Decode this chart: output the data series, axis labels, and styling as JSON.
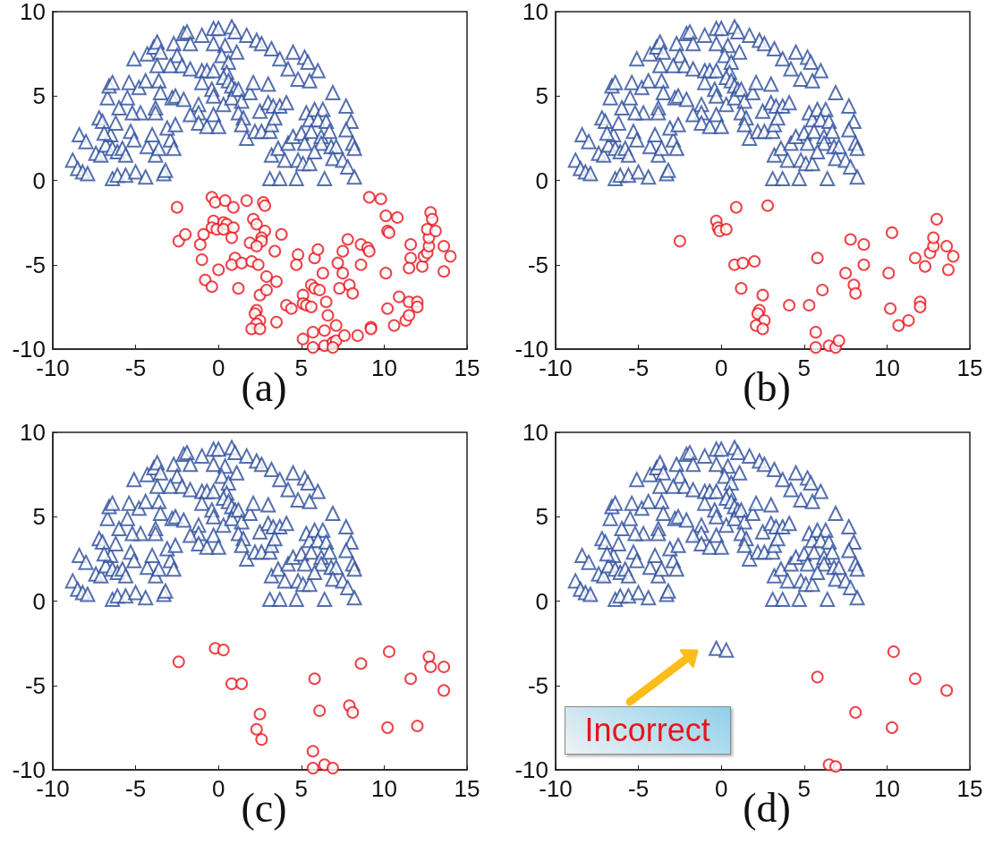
{
  "chart_data": [
    {
      "type": "scatter",
      "title": "(a)",
      "xlim": [
        -10,
        15
      ],
      "ylim": [
        -10,
        10
      ],
      "xticks": [
        -10,
        -5,
        0,
        5,
        10,
        15
      ],
      "yticks": [
        -10,
        -5,
        0,
        5,
        10
      ],
      "series": [
        {
          "color": "#2b4c9b",
          "marker": "triangle",
          "x": [
            -8.8,
            -8.5,
            -8.2,
            -7.9,
            -8.4,
            -8.0,
            -7.4,
            -7.1,
            -6.8,
            -6.5,
            -7.2,
            -7.0,
            -6.9,
            -6.7,
            -6.6,
            -6.4,
            -6.0,
            -6.2,
            -6.4,
            -6.1,
            -5.8,
            -5.6,
            -6.4,
            -6.1,
            -5.6,
            -5.0,
            -4.4,
            -5.5,
            -5.4,
            -5.1,
            -4.8,
            -4.7,
            -5.2,
            -5.3,
            -5.1,
            -4.3,
            -4.4,
            -4.3,
            -3.9,
            -3.7,
            -3.5,
            -3.7,
            -3.6,
            -3.5,
            -3.8,
            -3.8,
            -4.0,
            -3.8,
            -3.6,
            -3.3,
            -3.2,
            -2.9,
            -2.7,
            -3.1,
            -2.6,
            -2.8,
            -2.6,
            -2.1,
            -2.7,
            -2.5,
            -2.9,
            -2.2,
            -1.7,
            -2.1,
            -1.9,
            -1.7,
            -1.0,
            -1.2,
            -1.2,
            -1.7,
            -1.2,
            -0.7,
            -1.0,
            -0.7,
            -0.3,
            -1.0,
            -0.4,
            -0.3,
            -0.3,
            0.0,
            -0.3,
            0.0,
            -0.3,
            0.4,
            0.2,
            0.6,
            0.8,
            1.0,
            1.1,
            0.5,
            0.3,
            0.6,
            0.8,
            1.0,
            0.3,
            0.8,
            1.2,
            1.4,
            1.9,
            2.1,
            3.0,
            1.2,
            1.5,
            1.4,
            1.7,
            2.2,
            2.6,
            3.1,
            3.2,
            2.5,
            3.0,
            3.3,
            3.7,
            4.1,
            3.4,
            1.7,
            2.3,
            2.6,
            3.2,
            3.7,
            4.5,
            5.2,
            5.4,
            4.2,
            4.8,
            5.5,
            6.0,
            6.9,
            7.7,
            8.0,
            7.7,
            3.2,
            3.6,
            4.0,
            4.2,
            4.5,
            4.8,
            5.1,
            5.5,
            5.3,
            5.5,
            5.8,
            6.3,
            6.0,
            6.5,
            5.0,
            5.2,
            5.6,
            6.2,
            6.7,
            6.2,
            6.8,
            7.1,
            5.8,
            6.9,
            7.5,
            7.8,
            8.1,
            8.2,
            3.1,
            3.7,
            4.7,
            6.4,
            8.2
          ],
          "values": [
            1.2,
            0.7,
            0.5,
            0.4,
            2.7,
            2.3,
            1.6,
            1.5,
            2.1,
            2.7,
            3.7,
            3.5,
            2.8,
            4.9,
            5.6,
            5.8,
            4.3,
            3.4,
            1.9,
            1.7,
            1.9,
            1.5,
            0.1,
            0.3,
            0.3,
            0.5,
            0.2,
            4.9,
            5.8,
            7.2,
            5.5,
            4.0,
            4.0,
            2.9,
            2.4,
            2.0,
            5.9,
            7.5,
            7.9,
            8.2,
            7.6,
            6.8,
            5.9,
            5.2,
            4.3,
            4.0,
            2.7,
            1.5,
            1.9,
            0.4,
            0.6,
            2.4,
            1.9,
            3.1,
            3.3,
            4.9,
            5.0,
            4.8,
            8.1,
            7.4,
            6.8,
            6.8,
            6.6,
            8.7,
            8.8,
            8.1,
            8.6,
            4.5,
            4.0,
            3.9,
            3.4,
            3.2,
            6.5,
            6.5,
            6.5,
            5.8,
            5.4,
            5.0,
            3.9,
            3.2,
            9.0,
            9.0,
            8.1,
            8.0,
            7.4,
            7.0,
            9.1,
            8.8,
            7.6,
            6.4,
            6.1,
            5.9,
            5.6,
            5.4,
            4.5,
            4.9,
            5.4,
            4.7,
            5.2,
            5.8,
            5.7,
            4.0,
            3.7,
            3.3,
            2.5,
            2.9,
            2.9,
            2.9,
            3.3,
            4.1,
            4.6,
            4.4,
            4.4,
            4.6,
            3.7,
            8.6,
            8.3,
            8.1,
            7.8,
            7.2,
            7.6,
            7.3,
            7.0,
            6.6,
            6.0,
            5.9,
            6.5,
            5.2,
            4.4,
            3.5,
            3.0,
            1.5,
            1.9,
            1.2,
            2.2,
            2.6,
            1.2,
            1.0,
            1.0,
            4.0,
            3.6,
            4.2,
            4.2,
            3.6,
            3.5,
            2.8,
            2.2,
            2.9,
            2.6,
            2.9,
            2.2,
            2.0,
            2.0,
            1.7,
            1.3,
            1.2,
            0.8,
            2.2,
            1.9,
            0.1,
            0.1,
            0.1,
            0.1,
            0.2
          ]
        },
        {
          "color": "#e8141c",
          "marker": "circle",
          "x": [
            -2.5,
            -2.4,
            -2.0,
            -1.1,
            -1.0,
            -0.8,
            -0.4,
            0.0,
            -0.4,
            -0.2,
            0.4,
            0.9,
            1.7,
            2.7,
            2.8,
            -0.3,
            -0.4,
            -0.1,
            0.3,
            0.5,
            0.3,
            0.9,
            0.8,
            -0.9,
            2.1,
            2.3,
            2.8,
            3.8,
            2.6,
            2.6,
            1.9,
            2.3,
            3.4,
            1.0,
            0.8,
            1.4,
            2.0,
            2.4,
            2.9,
            3.5,
            1.2,
            2.5,
            2.9,
            2.3,
            2.2,
            2.5,
            2.3,
            2.0,
            2.5,
            3.5,
            4.1,
            4.4,
            4.8,
            4.7,
            5.1,
            5.1,
            5.3,
            5.6,
            5.6,
            5.8,
            6.1,
            5.8,
            6.0,
            6.3,
            6.5,
            6.6,
            7.1,
            6.4,
            5.7,
            5.1,
            5.7,
            6.4,
            6.9,
            7.1,
            6.9,
            7.6,
            8.4,
            7.2,
            7.5,
            7.8,
            7.5,
            7.3,
            7.9,
            8.1,
            8.6,
            9.0,
            9.1,
            8.6,
            9.1,
            9.8,
            10.1,
            10.8,
            10.2,
            10.3,
            10.1,
            10.2,
            10.9,
            9.2,
            9.2,
            10.6,
            11.3,
            11.5,
            11.5,
            12.0,
            12.0,
            11.6,
            11.6,
            11.5,
            12.3,
            12.4,
            12.6,
            12.7,
            12.7,
            12.6,
            13.1,
            12.8,
            12.9,
            13.6,
            14.0,
            13.6
          ],
          "values": [
            -1.6,
            -3.6,
            -3.2,
            -3.8,
            -4.7,
            -5.9,
            -6.3,
            -5.3,
            -1.0,
            -1.3,
            -1.2,
            -1.6,
            -1.2,
            -1.3,
            -1.5,
            -2.4,
            -2.8,
            -2.9,
            -2.5,
            -2.6,
            -2.9,
            -2.8,
            -3.4,
            -3.2,
            -2.3,
            -2.6,
            -3.0,
            -3.2,
            -3.4,
            -3.6,
            -3.7,
            -3.9,
            -4.2,
            -4.6,
            -5.0,
            -4.9,
            -4.8,
            -5.0,
            -5.7,
            -6.0,
            -6.4,
            -6.8,
            -6.5,
            -7.7,
            -7.9,
            -8.3,
            -8.5,
            -8.8,
            -8.8,
            -8.4,
            -7.4,
            -7.6,
            -4.4,
            -5.0,
            -6.8,
            -7.3,
            -7.4,
            -7.5,
            -6.2,
            -6.4,
            -6.5,
            -4.6,
            -4.1,
            -5.5,
            -7.2,
            -8.0,
            -8.6,
            -8.9,
            -9.0,
            -9.4,
            -9.9,
            -9.8,
            -9.6,
            -9.5,
            -9.9,
            -9.2,
            -9.2,
            -4.9,
            -4.2,
            -3.5,
            -5.5,
            -6.4,
            -6.2,
            -6.7,
            -3.8,
            -4.0,
            -4.2,
            -5.0,
            -1.0,
            -1.1,
            -2.1,
            -2.2,
            -3.0,
            -3.1,
            -5.5,
            -7.6,
            -6.9,
            -8.7,
            -8.8,
            -8.6,
            -8.3,
            -8.0,
            -7.2,
            -7.2,
            -7.5,
            -3.8,
            -4.6,
            -5.2,
            -5.1,
            -4.5,
            -4.3,
            -3.9,
            -3.4,
            -2.9,
            -3.0,
            -1.9,
            -2.3,
            -3.9,
            -4.5,
            -5.4
          ]
        }
      ]
    },
    {
      "type": "scatter",
      "title": "(b)",
      "xlim": [
        -10,
        15
      ],
      "ylim": [
        -10,
        10
      ],
      "xticks": [
        -10,
        -5,
        0,
        5,
        10,
        15
      ],
      "yticks": [
        -10,
        -5,
        0,
        5,
        10
      ],
      "series": [
        {
          "color": "#2b4c9b",
          "marker": "triangle",
          "x": [
            -8.8,
            -8.5,
            -8.2,
            -7.9,
            -8.4,
            -8.0,
            -7.4,
            -7.1,
            -6.8,
            -6.5,
            -7.2,
            -7.0,
            -6.9,
            -6.7,
            -6.6,
            -6.4,
            -6.0,
            -6.2,
            -6.4,
            -6.1,
            -5.8,
            -5.6,
            -6.4,
            -6.1,
            -5.6,
            -5.0,
            -4.4,
            -5.5,
            -5.4,
            -5.1,
            -4.8,
            -4.7,
            -5.2,
            -5.3,
            -5.1,
            -4.3,
            -4.4,
            -4.3,
            -3.9,
            -3.7,
            -3.5,
            -3.7,
            -3.6,
            -3.5,
            -3.8,
            -3.8,
            -4.0,
            -3.8,
            -3.6,
            -3.3,
            -3.2,
            -2.9,
            -2.7,
            -3.1,
            -2.6,
            -2.8,
            -2.6,
            -2.1,
            -2.7,
            -2.5,
            -2.9,
            -2.2,
            -1.7,
            -2.1,
            -1.9,
            -1.7,
            -1.0,
            -1.2,
            -1.2,
            -1.7,
            -1.2,
            -0.7,
            -1.0,
            -0.7,
            -0.3,
            -1.0,
            -0.4,
            -0.3,
            -0.3,
            0.0,
            -0.3,
            0.0,
            -0.3,
            0.4,
            0.2,
            0.6,
            0.8,
            1.0,
            1.1,
            0.5,
            0.3,
            0.6,
            0.8,
            1.0,
            0.3,
            0.8,
            1.2,
            1.4,
            1.9,
            2.1,
            3.0,
            1.2,
            1.5,
            1.4,
            1.7,
            2.2,
            2.6,
            3.1,
            3.2,
            2.5,
            3.0,
            3.3,
            3.7,
            4.1,
            3.4,
            1.7,
            2.3,
            2.6,
            3.2,
            3.7,
            4.5,
            5.2,
            5.4,
            4.2,
            4.8,
            5.5,
            6.0,
            6.9,
            7.7,
            8.0,
            7.7,
            3.2,
            3.6,
            4.0,
            4.2,
            4.5,
            4.8,
            5.1,
            5.5,
            5.3,
            5.5,
            5.8,
            6.3,
            6.0,
            6.5,
            5.0,
            5.2,
            5.6,
            6.2,
            6.7,
            6.2,
            6.8,
            7.1,
            5.8,
            6.9,
            7.5,
            7.8,
            8.1,
            8.2,
            3.1,
            3.7,
            4.7,
            6.4,
            8.2
          ],
          "values": [
            1.2,
            0.7,
            0.5,
            0.4,
            2.7,
            2.3,
            1.6,
            1.5,
            2.1,
            2.7,
            3.7,
            3.5,
            2.8,
            4.9,
            5.6,
            5.8,
            4.3,
            3.4,
            1.9,
            1.7,
            1.9,
            1.5,
            0.1,
            0.3,
            0.3,
            0.5,
            0.2,
            4.9,
            5.8,
            7.2,
            5.5,
            4.0,
            4.0,
            2.9,
            2.4,
            2.0,
            5.9,
            7.5,
            7.9,
            8.2,
            7.6,
            6.8,
            5.9,
            5.2,
            4.3,
            4.0,
            2.7,
            1.5,
            1.9,
            0.4,
            0.6,
            2.4,
            1.9,
            3.1,
            3.3,
            4.9,
            5.0,
            4.8,
            8.1,
            7.4,
            6.8,
            6.8,
            6.6,
            8.7,
            8.8,
            8.1,
            8.6,
            4.5,
            4.0,
            3.9,
            3.4,
            3.2,
            6.5,
            6.5,
            6.5,
            5.8,
            5.4,
            5.0,
            3.9,
            3.2,
            9.0,
            9.0,
            8.1,
            8.0,
            7.4,
            7.0,
            9.1,
            8.8,
            7.6,
            6.4,
            6.1,
            5.9,
            5.6,
            5.4,
            4.5,
            4.9,
            5.4,
            4.7,
            5.2,
            5.8,
            5.7,
            4.0,
            3.7,
            3.3,
            2.5,
            2.9,
            2.9,
            2.9,
            3.3,
            4.1,
            4.6,
            4.4,
            4.4,
            4.6,
            3.7,
            8.6,
            8.3,
            8.1,
            7.8,
            7.2,
            7.6,
            7.3,
            7.0,
            6.6,
            6.0,
            5.9,
            6.5,
            5.2,
            4.4,
            3.5,
            3.0,
            1.5,
            1.9,
            1.2,
            2.2,
            2.6,
            1.2,
            1.0,
            1.0,
            4.0,
            3.6,
            4.2,
            4.2,
            3.6,
            3.5,
            2.8,
            2.2,
            2.9,
            2.6,
            2.9,
            2.2,
            2.0,
            2.0,
            1.7,
            1.3,
            1.2,
            0.8,
            2.2,
            1.9,
            0.1,
            0.1,
            0.1,
            0.1,
            0.2
          ]
        },
        {
          "color": "#e8141c",
          "marker": "circle",
          "x": [
            -2.5,
            -0.3,
            -0.2,
            -0.1,
            0.3,
            0.9,
            2.8,
            0.8,
            1.3,
            2.0,
            1.2,
            2.5,
            2.3,
            2.2,
            2.6,
            2.1,
            2.5,
            4.1,
            5.3,
            5.8,
            6.1,
            5.7,
            5.7,
            6.5,
            6.9,
            7.1,
            7.5,
            7.8,
            8.6,
            8.6,
            8.0,
            8.1,
            10.3,
            10.1,
            10.2,
            10.7,
            11.3,
            12.0,
            12.0,
            11.7,
            12.3,
            12.6,
            12.8,
            12.8,
            13.0,
            13.6,
            14.0,
            13.7
          ],
          "values": [
            -3.6,
            -2.4,
            -2.8,
            -3.0,
            -2.9,
            -1.6,
            -1.5,
            -5.0,
            -4.9,
            -4.8,
            -6.4,
            -6.8,
            -7.7,
            -7.9,
            -8.3,
            -8.6,
            -8.8,
            -7.4,
            -7.4,
            -4.6,
            -6.5,
            -9.0,
            -9.9,
            -9.8,
            -9.9,
            -9.5,
            -5.5,
            -3.5,
            -3.8,
            -5.0,
            -6.2,
            -6.7,
            -3.1,
            -5.5,
            -7.6,
            -8.6,
            -8.3,
            -7.2,
            -7.5,
            -4.6,
            -5.1,
            -4.3,
            -3.9,
            -3.4,
            -2.3,
            -3.9,
            -4.5,
            -5.3
          ]
        }
      ]
    },
    {
      "type": "scatter",
      "title": "(c)",
      "xlim": [
        -10,
        15
      ],
      "ylim": [
        -10,
        10
      ],
      "xticks": [
        -10,
        -5,
        0,
        5,
        10,
        15
      ],
      "yticks": [
        -10,
        -5,
        0,
        5,
        10
      ],
      "series": [
        {
          "color": "#2b4c9b",
          "marker": "triangle",
          "x": [
            -8.8,
            -8.5,
            -8.2,
            -7.9,
            -8.4,
            -8.0,
            -7.4,
            -7.1,
            -6.8,
            -6.5,
            -7.2,
            -7.0,
            -6.9,
            -6.7,
            -6.6,
            -6.4,
            -6.0,
            -6.2,
            -6.4,
            -6.1,
            -5.8,
            -5.6,
            -6.4,
            -6.1,
            -5.6,
            -5.0,
            -4.4,
            -5.5,
            -5.4,
            -5.1,
            -4.8,
            -4.7,
            -5.2,
            -5.3,
            -5.1,
            -4.3,
            -4.4,
            -4.3,
            -3.9,
            -3.7,
            -3.5,
            -3.7,
            -3.6,
            -3.5,
            -3.8,
            -3.8,
            -4.0,
            -3.8,
            -3.6,
            -3.3,
            -3.2,
            -2.9,
            -2.7,
            -3.1,
            -2.6,
            -2.8,
            -2.6,
            -2.1,
            -2.7,
            -2.5,
            -2.9,
            -2.2,
            -1.7,
            -2.1,
            -1.9,
            -1.7,
            -1.0,
            -1.2,
            -1.2,
            -1.7,
            -1.2,
            -0.7,
            -1.0,
            -0.7,
            -0.3,
            -1.0,
            -0.4,
            -0.3,
            -0.3,
            0.0,
            -0.3,
            0.0,
            -0.3,
            0.4,
            0.2,
            0.6,
            0.8,
            1.0,
            1.1,
            0.5,
            0.3,
            0.6,
            0.8,
            1.0,
            0.3,
            0.8,
            1.2,
            1.4,
            1.9,
            2.1,
            3.0,
            1.2,
            1.5,
            1.4,
            1.7,
            2.2,
            2.6,
            3.1,
            3.2,
            2.5,
            3.0,
            3.3,
            3.7,
            4.1,
            3.4,
            1.7,
            2.3,
            2.6,
            3.2,
            3.7,
            4.5,
            5.2,
            5.4,
            4.2,
            4.8,
            5.5,
            6.0,
            6.9,
            7.7,
            8.0,
            7.7,
            3.2,
            3.6,
            4.0,
            4.2,
            4.5,
            4.8,
            5.1,
            5.5,
            5.3,
            5.5,
            5.8,
            6.3,
            6.0,
            6.5,
            5.0,
            5.2,
            5.6,
            6.2,
            6.7,
            6.2,
            6.8,
            7.1,
            5.8,
            6.9,
            7.5,
            7.8,
            8.1,
            8.2,
            3.1,
            3.7,
            4.7,
            6.4,
            8.2
          ],
          "values": [
            1.2,
            0.7,
            0.5,
            0.4,
            2.7,
            2.3,
            1.6,
            1.5,
            2.1,
            2.7,
            3.7,
            3.5,
            2.8,
            4.9,
            5.6,
            5.8,
            4.3,
            3.4,
            1.9,
            1.7,
            1.9,
            1.5,
            0.1,
            0.3,
            0.3,
            0.5,
            0.2,
            4.9,
            5.8,
            7.2,
            5.5,
            4.0,
            4.0,
            2.9,
            2.4,
            2.0,
            5.9,
            7.5,
            7.9,
            8.2,
            7.6,
            6.8,
            5.9,
            5.2,
            4.3,
            4.0,
            2.7,
            1.5,
            1.9,
            0.4,
            0.6,
            2.4,
            1.9,
            3.1,
            3.3,
            4.9,
            5.0,
            4.8,
            8.1,
            7.4,
            6.8,
            6.8,
            6.6,
            8.7,
            8.8,
            8.1,
            8.6,
            4.5,
            4.0,
            3.9,
            3.4,
            3.2,
            6.5,
            6.5,
            6.5,
            5.8,
            5.4,
            5.0,
            3.9,
            3.2,
            9.0,
            9.0,
            8.1,
            8.0,
            7.4,
            7.0,
            9.1,
            8.8,
            7.6,
            6.4,
            6.1,
            5.9,
            5.6,
            5.4,
            4.5,
            4.9,
            5.4,
            4.7,
            5.2,
            5.8,
            5.7,
            4.0,
            3.7,
            3.3,
            2.5,
            2.9,
            2.9,
            2.9,
            3.3,
            4.1,
            4.6,
            4.4,
            4.4,
            4.6,
            3.7,
            8.6,
            8.3,
            8.1,
            7.8,
            7.2,
            7.6,
            7.3,
            7.0,
            6.6,
            6.0,
            5.9,
            6.5,
            5.2,
            4.4,
            3.5,
            3.0,
            1.5,
            1.9,
            1.2,
            2.2,
            2.6,
            1.2,
            1.0,
            1.0,
            4.0,
            3.6,
            4.2,
            4.2,
            3.6,
            3.5,
            2.8,
            2.2,
            2.9,
            2.6,
            2.9,
            2.2,
            2.0,
            2.0,
            1.7,
            1.3,
            1.2,
            0.8,
            2.2,
            1.9,
            0.1,
            0.1,
            0.1,
            0.1,
            0.2
          ]
        },
        {
          "color": "#e8141c",
          "marker": "circle",
          "x": [
            -2.4,
            -0.2,
            0.3,
            0.8,
            1.4,
            2.5,
            2.3,
            2.6,
            5.8,
            6.1,
            5.7,
            5.7,
            6.4,
            6.9,
            7.9,
            8.1,
            8.6,
            10.3,
            10.2,
            11.6,
            12.0,
            12.7,
            12.8,
            13.6,
            13.6
          ],
          "values": [
            -3.6,
            -2.8,
            -2.9,
            -4.9,
            -4.9,
            -6.7,
            -7.6,
            -8.2,
            -4.6,
            -6.5,
            -8.9,
            -9.9,
            -9.7,
            -9.9,
            -6.2,
            -6.6,
            -3.7,
            -3.0,
            -7.5,
            -4.6,
            -7.4,
            -3.3,
            -3.9,
            -3.9,
            -5.3
          ]
        }
      ]
    },
    {
      "type": "scatter",
      "title": "(d)",
      "xlim": [
        -10,
        15
      ],
      "ylim": [
        -10,
        10
      ],
      "xticks": [
        -10,
        -5,
        0,
        5,
        10,
        15
      ],
      "yticks": [
        -10,
        -5,
        0,
        5,
        10
      ],
      "annotations": [
        {
          "text": "Incorrect",
          "x": -0.3,
          "y": -2.8
        }
      ],
      "series": [
        {
          "color": "#2b4c9b",
          "marker": "triangle",
          "x": [
            -8.8,
            -8.5,
            -8.2,
            -7.9,
            -8.4,
            -8.0,
            -7.4,
            -7.1,
            -6.8,
            -6.5,
            -7.2,
            -7.0,
            -6.9,
            -6.7,
            -6.6,
            -6.4,
            -6.0,
            -6.2,
            -6.4,
            -6.1,
            -5.8,
            -5.6,
            -6.4,
            -6.1,
            -5.6,
            -5.0,
            -4.4,
            -5.5,
            -5.4,
            -5.1,
            -4.8,
            -4.7,
            -5.2,
            -5.3,
            -5.1,
            -4.3,
            -4.4,
            -4.3,
            -3.9,
            -3.7,
            -3.5,
            -3.7,
            -3.6,
            -3.5,
            -3.8,
            -3.8,
            -4.0,
            -3.8,
            -3.6,
            -3.3,
            -3.2,
            -2.9,
            -2.7,
            -3.1,
            -2.6,
            -2.8,
            -2.6,
            -2.1,
            -2.7,
            -2.5,
            -2.9,
            -2.2,
            -1.7,
            -2.1,
            -1.9,
            -1.7,
            -1.0,
            -1.2,
            -1.2,
            -1.7,
            -1.2,
            -0.7,
            -1.0,
            -0.7,
            -0.3,
            -1.0,
            -0.4,
            -0.3,
            -0.3,
            0.0,
            -0.3,
            0.0,
            -0.3,
            0.4,
            0.2,
            0.6,
            0.8,
            1.0,
            1.1,
            0.5,
            0.3,
            0.6,
            0.8,
            1.0,
            0.3,
            0.8,
            1.2,
            1.4,
            1.9,
            2.1,
            3.0,
            1.2,
            1.5,
            1.4,
            1.7,
            2.2,
            2.6,
            3.1,
            3.2,
            2.5,
            3.0,
            3.3,
            3.7,
            4.1,
            3.4,
            1.7,
            2.3,
            2.6,
            3.2,
            3.7,
            4.5,
            5.2,
            5.4,
            4.2,
            4.8,
            5.5,
            6.0,
            6.9,
            7.7,
            8.0,
            7.7,
            3.2,
            3.6,
            4.0,
            4.2,
            4.5,
            4.8,
            5.1,
            5.5,
            5.3,
            5.5,
            5.8,
            6.3,
            6.0,
            6.5,
            5.0,
            5.2,
            5.6,
            6.2,
            6.7,
            6.2,
            6.8,
            7.1,
            5.8,
            6.9,
            7.5,
            7.8,
            8.1,
            8.2,
            3.1,
            3.7,
            4.7,
            6.4,
            8.2,
            -0.3,
            0.3
          ],
          "values": [
            1.2,
            0.7,
            0.5,
            0.4,
            2.7,
            2.3,
            1.6,
            1.5,
            2.1,
            2.7,
            3.7,
            3.5,
            2.8,
            4.9,
            5.6,
            5.8,
            4.3,
            3.4,
            1.9,
            1.7,
            1.9,
            1.5,
            0.1,
            0.3,
            0.3,
            0.5,
            0.2,
            4.9,
            5.8,
            7.2,
            5.5,
            4.0,
            4.0,
            2.9,
            2.4,
            2.0,
            5.9,
            7.5,
            7.9,
            8.2,
            7.6,
            6.8,
            5.9,
            5.2,
            4.3,
            4.0,
            2.7,
            1.5,
            1.9,
            0.4,
            0.6,
            2.4,
            1.9,
            3.1,
            3.3,
            4.9,
            5.0,
            4.8,
            8.1,
            7.4,
            6.8,
            6.8,
            6.6,
            8.7,
            8.8,
            8.1,
            8.6,
            4.5,
            4.0,
            3.9,
            3.4,
            3.2,
            6.5,
            6.5,
            6.5,
            5.8,
            5.4,
            5.0,
            3.9,
            3.2,
            9.0,
            9.0,
            8.1,
            8.0,
            7.4,
            7.0,
            9.1,
            8.8,
            7.6,
            6.4,
            6.1,
            5.9,
            5.6,
            5.4,
            4.5,
            4.9,
            5.4,
            4.7,
            5.2,
            5.8,
            5.7,
            4.0,
            3.7,
            3.3,
            2.5,
            2.9,
            2.9,
            2.9,
            3.3,
            4.1,
            4.6,
            4.4,
            4.4,
            4.6,
            3.7,
            8.6,
            8.3,
            8.1,
            7.8,
            7.2,
            7.6,
            7.3,
            7.0,
            6.6,
            6.0,
            5.9,
            6.5,
            5.2,
            4.4,
            3.5,
            3.0,
            1.5,
            1.9,
            1.2,
            2.2,
            2.6,
            1.2,
            1.0,
            1.0,
            4.0,
            3.6,
            4.2,
            4.2,
            3.6,
            3.5,
            2.8,
            2.2,
            2.9,
            2.6,
            2.9,
            2.2,
            2.0,
            2.0,
            1.7,
            1.3,
            1.2,
            0.8,
            2.2,
            1.9,
            0.1,
            0.1,
            0.1,
            0.1,
            0.2,
            -2.8,
            -2.9
          ]
        },
        {
          "color": "#e8141c",
          "marker": "circle",
          "x": [
            5.8,
            10.4,
            11.7,
            13.6,
            8.1,
            10.3,
            6.5,
            6.9
          ],
          "values": [
            -4.5,
            -3.0,
            -4.6,
            -5.3,
            -6.6,
            -7.5,
            -9.7,
            -9.8
          ]
        }
      ]
    }
  ]
}
